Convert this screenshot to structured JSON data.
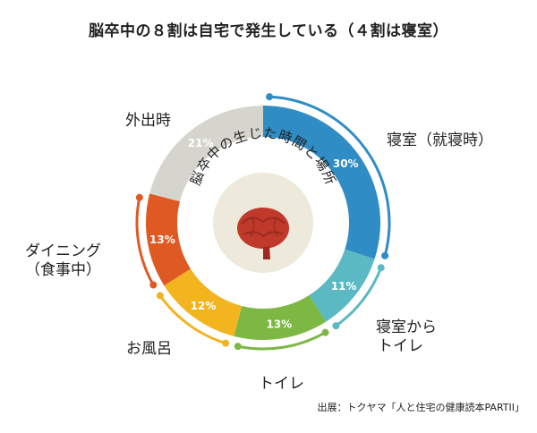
{
  "title": "脳卒中の８割は自宅で発生している（４割は寝室）",
  "center_label": "脳卒中の生じた時間と場所",
  "source": "出展：トクヤマ「人と住宅の健康読本PARTII」",
  "chart_data": {
    "type": "pie",
    "title": "脳卒中の８割は自宅で発生している（４割は寝室）",
    "unit": "%",
    "slices": [
      {
        "label": "寝室（就寝時）",
        "value": 30,
        "display": "30%",
        "color": "#2f8cc4"
      },
      {
        "label": "寝室から トイレ",
        "value": 11,
        "display": "11%",
        "color": "#5bb9c4"
      },
      {
        "label": "トイレ",
        "value": 13,
        "display": "13%",
        "color": "#7cb843"
      },
      {
        "label": "お風呂",
        "value": 12,
        "display": "12%",
        "color": "#f2b51f"
      },
      {
        "label": "ダイニング （食事中）",
        "value": 13,
        "display": "13%",
        "color": "#df5a23"
      },
      {
        "label": "外出時",
        "value": 21,
        "display": "21%",
        "color": "#d6d5cd"
      }
    ]
  },
  "labels": {
    "bedroom": "寝室（就寝時）",
    "bed_to_toilet_1": "寝室から",
    "bed_to_toilet_2": "トイレ",
    "toilet": "トイレ",
    "bath": "お風呂",
    "dining_1": "ダイニング",
    "dining_2": "（食事中）",
    "outing": "外出時"
  },
  "colors": {
    "center_disc": "#ede9db",
    "brain_red": "#c0392b",
    "brain_dark": "#9c2a1e",
    "text": "#222222"
  }
}
